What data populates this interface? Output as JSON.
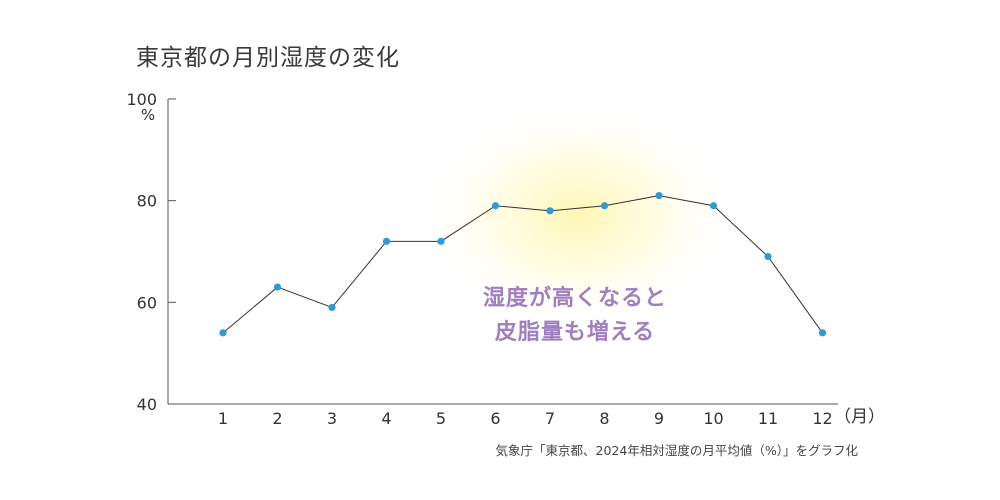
{
  "chart_data": {
    "type": "line",
    "title": "東京都の月別湿度の変化",
    "categories": [
      "1",
      "2",
      "3",
      "4",
      "5",
      "6",
      "7",
      "8",
      "9",
      "10",
      "11",
      "12"
    ],
    "series": [
      {
        "values": [
          54,
          63,
          59,
          72,
          72,
          79,
          78,
          79,
          81,
          79,
          69,
          54
        ]
      }
    ],
    "ylim": [
      40,
      100
    ],
    "yticks": [
      "40",
      "60",
      "80",
      "100"
    ],
    "yunit": "%",
    "xunit": "（月）",
    "annotation": [
      "湿度が高くなると",
      "皮脂量も増える"
    ],
    "source": "気象庁「東京都、2024年相対湿度の月平均値（%）」をグラフ化",
    "colors": {
      "line": "#333333",
      "marker": "#2e9bd6",
      "annotation": "#a07fc0",
      "highlight": "#fff6b0"
    },
    "grid": false
  }
}
